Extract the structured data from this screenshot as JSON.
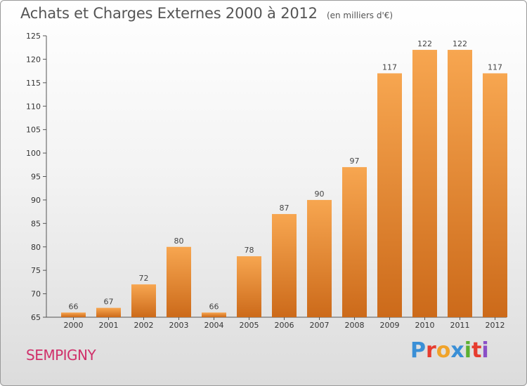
{
  "header": {
    "title": "Achats et Charges Externes 2000 à 2012",
    "subtitle": "(en milliers d'€)"
  },
  "footer": {
    "commune": "SEMPIGNY",
    "logo_text": "Proxiti",
    "logo_colors": [
      "#3a8fd6",
      "#e63c2f",
      "#f0a32a",
      "#3a8fd6",
      "#5bb030",
      "#e63c2f",
      "#8a4fc7"
    ]
  },
  "chart_data": {
    "type": "bar",
    "title": "Achats et Charges Externes 2000 à 2012",
    "subtitle": "(en milliers d'€)",
    "categories": [
      "2000",
      "2001",
      "2002",
      "2003",
      "2004",
      "2005",
      "2006",
      "2007",
      "2008",
      "2009",
      "2010",
      "2011",
      "2012"
    ],
    "values": [
      66,
      67,
      72,
      80,
      66,
      78,
      87,
      90,
      97,
      117,
      122,
      122,
      117
    ],
    "xlabel": "",
    "ylabel": "",
    "ylim": [
      65,
      125
    ],
    "yticks": [
      65,
      70,
      75,
      80,
      85,
      90,
      95,
      100,
      105,
      110,
      115,
      120,
      125
    ],
    "grid": false,
    "legend": "none",
    "bar_color_top": "#f7a650",
    "bar_color_bottom": "#cc6a1a"
  }
}
